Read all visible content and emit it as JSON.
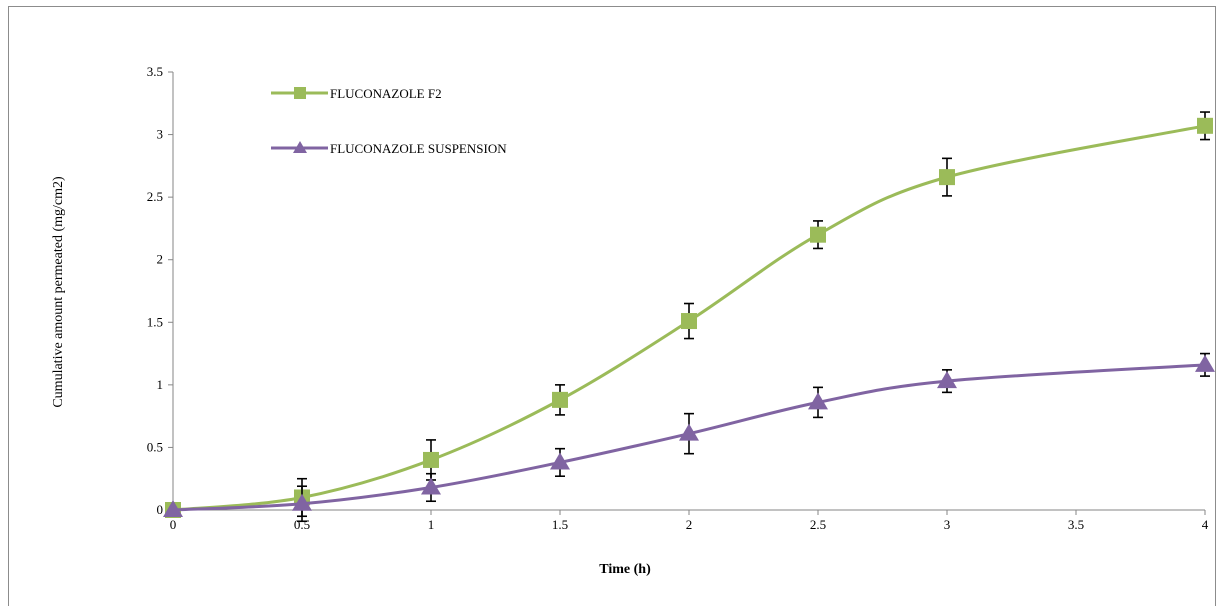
{
  "chart_data": {
    "type": "line",
    "title": "",
    "xlabel": "Time (h)",
    "ylabel": "Cumulative amount permeated (mg/cm2)",
    "xlim": [
      0,
      4
    ],
    "ylim": [
      0,
      3.5
    ],
    "x_ticks": [
      "0",
      "0.5",
      "1",
      "1.5",
      "2",
      "2.5",
      "3",
      "3.5",
      "4"
    ],
    "y_ticks": [
      "0",
      "0.5",
      "1",
      "1.5",
      "2",
      "2.5",
      "3",
      "3.5"
    ],
    "grid": false,
    "legend_position": "top-left",
    "series": [
      {
        "name": "FLUCONAZOLE F2",
        "marker": "square",
        "color": "#9BBB59",
        "x": [
          0,
          0.5,
          1,
          1.5,
          2,
          2.5,
          3,
          4
        ],
        "y": [
          0,
          0.1,
          0.4,
          0.88,
          1.51,
          2.2,
          2.66,
          3.07
        ],
        "error": [
          0,
          0.15,
          0.16,
          0.12,
          0.14,
          0.11,
          0.15,
          0.11
        ]
      },
      {
        "name": "FLUCONAZOLE SUSPENSION",
        "marker": "triangle",
        "color": "#8064A2",
        "x": [
          0,
          0.5,
          1,
          1.5,
          2,
          2.5,
          3,
          4
        ],
        "y": [
          0,
          0.05,
          0.18,
          0.38,
          0.61,
          0.86,
          1.03,
          1.16
        ],
        "error": [
          0,
          0.14,
          0.11,
          0.11,
          0.16,
          0.12,
          0.09,
          0.09
        ]
      }
    ]
  }
}
